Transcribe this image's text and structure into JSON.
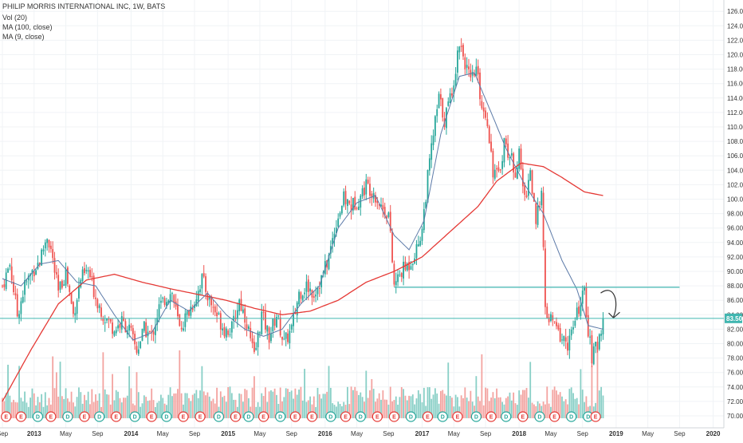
{
  "header": {
    "title": "PHILIP MORRIS INTERNATIONAL INC, 1W, BATS",
    "vol_label": "Vol (20)",
    "ma100_label": "MA (100, close)",
    "ma9_label": "MA (9, close)"
  },
  "colors": {
    "up": "#26a69a",
    "down": "#ef5350",
    "vol_up": "#88cfc6",
    "vol_down": "#f3a3a0",
    "ma100": "#e53935",
    "ma9": "#5c7aa8",
    "hline": "#41b6b0",
    "event_dividend": "#26a69a",
    "event_earnings": "#e53935"
  },
  "chart_data": {
    "type": "candlestick",
    "title": "PHILIP MORRIS INTERNATIONAL INC, 1W, BATS",
    "interval": "1W",
    "ylim": [
      69,
      127
    ],
    "y_ticks": [
      "70.00",
      "72.00",
      "74.00",
      "76.00",
      "78.00",
      "80.00",
      "82.00",
      "84.00",
      "86.00",
      "88.00",
      "90.00",
      "92.00",
      "94.00",
      "96.00",
      "98.00",
      "100.00",
      "102.00",
      "104.00",
      "106.00",
      "108.00",
      "110.00",
      "112.00",
      "114.00",
      "116.00",
      "118.00",
      "120.00",
      "122.00",
      "124.00",
      "126.00"
    ],
    "x_labels": [
      "Sep",
      "2013",
      "May",
      "Sep",
      "2014",
      "May",
      "Sep",
      "2015",
      "May",
      "Sep",
      "2016",
      "May",
      "Sep",
      "2017",
      "May",
      "Sep",
      "2018",
      "May",
      "Sep",
      "2019",
      "May",
      "Sep",
      "2020"
    ],
    "x_label_weeks": [
      0,
      17,
      34,
      51,
      69,
      86,
      103,
      121,
      138,
      155,
      173,
      190,
      207,
      225,
      242,
      259,
      277,
      294,
      311,
      329,
      346,
      363,
      381
    ],
    "price_anchors": [
      [
        0,
        88.0
      ],
      [
        4,
        91.0
      ],
      [
        8,
        84.0
      ],
      [
        12,
        88.0
      ],
      [
        16,
        90.0
      ],
      [
        20,
        91.5
      ],
      [
        24,
        95.0
      ],
      [
        26,
        93.0
      ],
      [
        30,
        87.0
      ],
      [
        34,
        90.0
      ],
      [
        38,
        84.0
      ],
      [
        42,
        89.0
      ],
      [
        46,
        90.0
      ],
      [
        50,
        86.5
      ],
      [
        54,
        84.0
      ],
      [
        60,
        82.0
      ],
      [
        64,
        83.0
      ],
      [
        68,
        82.0
      ],
      [
        72,
        79.0
      ],
      [
        76,
        82.0
      ],
      [
        80,
        81.0
      ],
      [
        84,
        85.0
      ],
      [
        88,
        86.5
      ],
      [
        91,
        87.0
      ],
      [
        95,
        82.0
      ],
      [
        99,
        84.0
      ],
      [
        103,
        86.0
      ],
      [
        107,
        89.0
      ],
      [
        111,
        86.0
      ],
      [
        115,
        84.0
      ],
      [
        119,
        82.0
      ],
      [
        123,
        82.0
      ],
      [
        127,
        86.0
      ],
      [
        131,
        83.0
      ],
      [
        135,
        78.0
      ],
      [
        139,
        84.0
      ],
      [
        143,
        81.0
      ],
      [
        147,
        84.0
      ],
      [
        151,
        80.0
      ],
      [
        155,
        82.0
      ],
      [
        159,
        87.0
      ],
      [
        163,
        88.0
      ],
      [
        167,
        87.0
      ],
      [
        171,
        89.0
      ],
      [
        175,
        92.0
      ],
      [
        179,
        97.0
      ],
      [
        183,
        100.0
      ],
      [
        187,
        99.0
      ],
      [
        191,
        100.0
      ],
      [
        195,
        102.0
      ],
      [
        199,
        101.0
      ],
      [
        203,
        99.0
      ],
      [
        207,
        98.0
      ],
      [
        210,
        88.0
      ],
      [
        214,
        90.0
      ],
      [
        218,
        91.0
      ],
      [
        222,
        93.0
      ],
      [
        225,
        96.0
      ],
      [
        228,
        103.0
      ],
      [
        231,
        109.0
      ],
      [
        234,
        114.0
      ],
      [
        237,
        111.0
      ],
      [
        240,
        114.0
      ],
      [
        243,
        118.0
      ],
      [
        245,
        122.0
      ],
      [
        248,
        119.0
      ],
      [
        251,
        116.0
      ],
      [
        254,
        118.0
      ],
      [
        257,
        113.0
      ],
      [
        260,
        111.0
      ],
      [
        263,
        104.0
      ],
      [
        266,
        103.0
      ],
      [
        269,
        108.0
      ],
      [
        272,
        106.0
      ],
      [
        275,
        104.0
      ],
      [
        277,
        106.0
      ],
      [
        280,
        100.0
      ],
      [
        283,
        104.0
      ],
      [
        286,
        96.0
      ],
      [
        289,
        102.0
      ],
      [
        291,
        84.0
      ],
      [
        295,
        83.0
      ],
      [
        299,
        81.0
      ],
      [
        303,
        80.0
      ],
      [
        306,
        82.0
      ],
      [
        309,
        85.0
      ],
      [
        312,
        87.0
      ],
      [
        314,
        82.0
      ],
      [
        316,
        78.0
      ],
      [
        319,
        80.0
      ],
      [
        322,
        83.5
      ]
    ],
    "ma100_anchors": [
      [
        0,
        72.0
      ],
      [
        15,
        79.0
      ],
      [
        30,
        85.5
      ],
      [
        45,
        88.8
      ],
      [
        60,
        89.6
      ],
      [
        75,
        88.5
      ],
      [
        90,
        87.6
      ],
      [
        105,
        86.8
      ],
      [
        120,
        86.0
      ],
      [
        135,
        84.9
      ],
      [
        150,
        84.0
      ],
      [
        165,
        84.5
      ],
      [
        180,
        86.0
      ],
      [
        195,
        88.5
      ],
      [
        210,
        90.0
      ],
      [
        225,
        92.0
      ],
      [
        240,
        95.5
      ],
      [
        255,
        99.0
      ],
      [
        265,
        102.5
      ],
      [
        278,
        105.0
      ],
      [
        290,
        104.5
      ],
      [
        300,
        103.0
      ],
      [
        312,
        101.0
      ],
      [
        322,
        100.5
      ]
    ],
    "ma9_anchors": [
      [
        0,
        89.0
      ],
      [
        10,
        88.0
      ],
      [
        20,
        91.0
      ],
      [
        30,
        91.5
      ],
      [
        40,
        88.5
      ],
      [
        50,
        88.0
      ],
      [
        60,
        84.0
      ],
      [
        70,
        80.5
      ],
      [
        80,
        81.5
      ],
      [
        90,
        86.0
      ],
      [
        100,
        84.5
      ],
      [
        110,
        87.0
      ],
      [
        120,
        84.0
      ],
      [
        130,
        82.0
      ],
      [
        140,
        81.0
      ],
      [
        150,
        82.0
      ],
      [
        160,
        85.5
      ],
      [
        170,
        88.0
      ],
      [
        180,
        96.0
      ],
      [
        190,
        99.5
      ],
      [
        200,
        100.5
      ],
      [
        210,
        95.0
      ],
      [
        218,
        93.0
      ],
      [
        226,
        97.0
      ],
      [
        235,
        109.0
      ],
      [
        245,
        117.0
      ],
      [
        253,
        117.5
      ],
      [
        262,
        112.0
      ],
      [
        270,
        107.0
      ],
      [
        280,
        102.0
      ],
      [
        290,
        98.0
      ],
      [
        300,
        91.5
      ],
      [
        308,
        87.5
      ],
      [
        314,
        82.5
      ],
      [
        322,
        82.0
      ]
    ],
    "support_line": {
      "price": 87.8,
      "from_week": 210,
      "to_week": 363
    },
    "last_price": {
      "value": 83.5,
      "label": "83.50"
    },
    "events": {
      "weeks": [
        2,
        10,
        19,
        26,
        35,
        44,
        52,
        61,
        71,
        80,
        88,
        97,
        106,
        116,
        125,
        132,
        140,
        149,
        157,
        166,
        176,
        184,
        192,
        201,
        210,
        219,
        228,
        236,
        244,
        254,
        262,
        270,
        279,
        288,
        296,
        305,
        314,
        318
      ],
      "kinds": [
        "E",
        "E",
        "D",
        "E",
        "D",
        "E",
        "D",
        "E",
        "D",
        "E",
        "D",
        "E",
        "E",
        "D",
        "E",
        "D",
        "E",
        "D",
        "E",
        "E",
        "D",
        "E",
        "D",
        "E",
        "E",
        "D",
        "E",
        "D",
        "E",
        "D",
        "E",
        "D",
        "E",
        "D",
        "E",
        "D",
        "D",
        "E"
      ]
    }
  }
}
